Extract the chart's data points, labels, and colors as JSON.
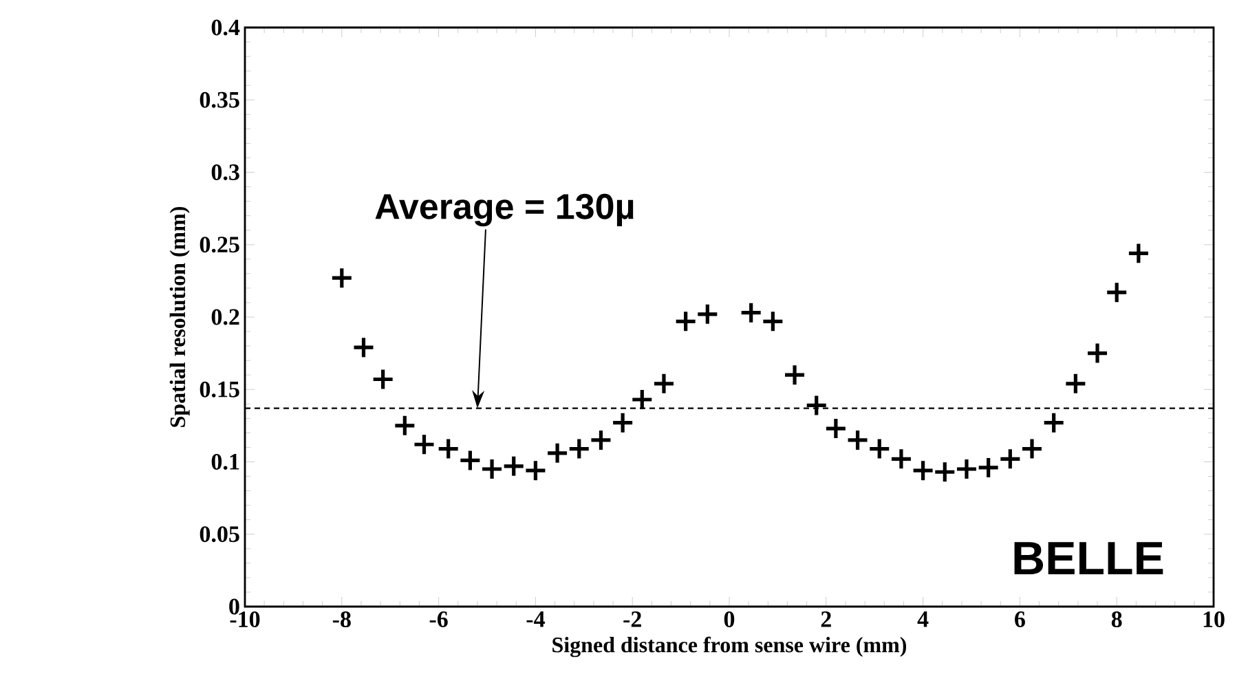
{
  "chart_data": {
    "type": "scatter",
    "xlabel": "Signed distance from sense wire  (mm)",
    "ylabel": "Spatial resolution (mm)",
    "x": [
      -8.0,
      -7.55,
      -7.15,
      -6.7,
      -6.3,
      -5.8,
      -5.35,
      -4.9,
      -4.45,
      -4.0,
      -3.55,
      -3.1,
      -2.65,
      -2.2,
      -1.8,
      -1.35,
      -0.9,
      -0.45,
      0.45,
      0.9,
      1.35,
      1.8,
      2.2,
      2.65,
      3.1,
      3.55,
      4.0,
      4.45,
      4.9,
      5.35,
      5.8,
      6.25,
      6.7,
      7.15,
      7.6,
      8.0,
      8.45
    ],
    "series": [
      {
        "color": "#000000",
        "values": [
          0.227,
          0.179,
          0.157,
          0.125,
          0.112,
          0.109,
          0.101,
          0.095,
          0.097,
          0.094,
          0.106,
          0.109,
          0.115,
          0.127,
          0.143,
          0.154,
          0.197,
          0.202,
          0.203,
          0.197,
          0.16,
          0.139,
          0.123,
          0.115,
          0.109,
          0.102,
          0.094,
          0.093,
          0.095,
          0.096,
          0.102,
          0.109,
          0.127,
          0.154,
          0.175,
          0.217,
          0.244
        ]
      }
    ],
    "marker": "cross",
    "xlim": [
      -10,
      10
    ],
    "xticks": [
      -10,
      -8,
      -6,
      -4,
      -2,
      0,
      2,
      4,
      6,
      8,
      10
    ],
    "ylim": [
      0,
      0.4
    ],
    "yticks": [
      0,
      0.05,
      0.1,
      0.15,
      0.2,
      0.25,
      0.3,
      0.35,
      0.4
    ],
    "ref_lines": [
      {
        "axis": "y",
        "value": 0.137,
        "line_style": "dashed",
        "color": "#000000"
      }
    ],
    "annotations": [
      {
        "text": "Average = 130µ",
        "x": -5.2,
        "y": 0.137
      },
      "BELLE"
    ]
  }
}
